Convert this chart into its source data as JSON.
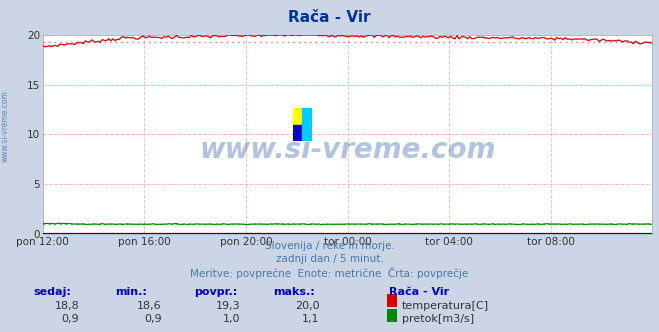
{
  "title": "Rača - Vir",
  "bg_color": "#ccd5e5",
  "plot_bg_color": "#ffffff",
  "grid_color": "#ffbbbb",
  "xlabel_ticks": [
    "pon 12:00",
    "pon 16:00",
    "pon 20:00",
    "tor 00:00",
    "tor 04:00",
    "tor 08:00"
  ],
  "ylim": [
    0,
    20
  ],
  "yticks": [
    0,
    5,
    10,
    15,
    20
  ],
  "temp_color": "#dd0000",
  "temp_avg_color": "#ff6666",
  "flow_color": "#008800",
  "flow_avg_color": "#00cc00",
  "river_color": "#0000cc",
  "temp_min": 18.6,
  "temp_max": 20.0,
  "temp_avg": 19.3,
  "temp_current": 18.8,
  "flow_min": 0.9,
  "flow_max": 1.1,
  "flow_avg": 1.0,
  "flow_current": 0.9,
  "subtitle1": "Slovenija / reke in morje.",
  "subtitle2": "zadnji dan / 5 minut.",
  "subtitle3": "Meritve: povprečne  Enote: metrične  Črta: povprečje",
  "legend_station": "Rača - Vir",
  "legend_temp": "temperatura[C]",
  "legend_flow": "pretok[m3/s]",
  "table_headers": [
    "sedaj:",
    "min.:",
    "povpr.:",
    "maks.:"
  ],
  "watermark": "www.si-vreme.com",
  "watermark_color": "#2255aa",
  "watermark_alpha": 0.35,
  "left_label": "www.si-vreme.com",
  "left_label_color": "#5588bb",
  "n_points": 288,
  "logo_colors": [
    "#ffff00",
    "#00ccff",
    "#0000cc",
    "#00ccff"
  ]
}
